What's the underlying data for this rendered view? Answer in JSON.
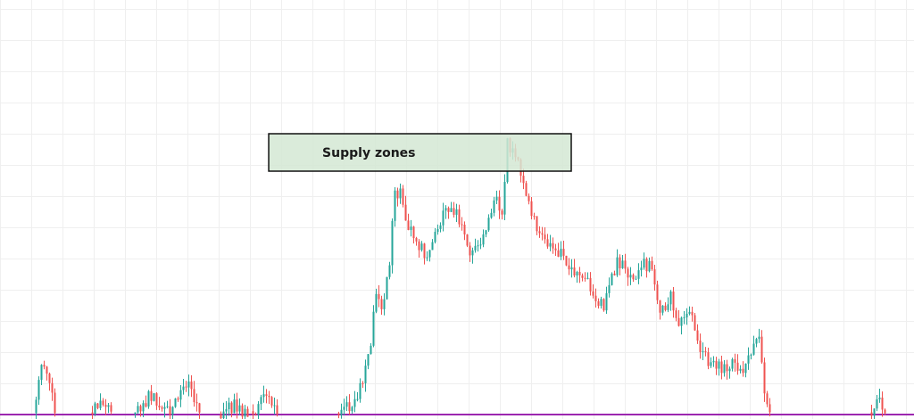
{
  "chart_data": {
    "type": "candlestick",
    "title": "",
    "xlabel": "",
    "ylabel": "",
    "grid": true,
    "colors": {
      "up": "#26a69a",
      "down": "#ef5350",
      "grid": "#efefef",
      "zone_fill": "#d4e8d4",
      "zone_border": "#111111",
      "baseline": "#9c27b0"
    },
    "ylim": [
      0,
      470
    ],
    "annotations": [
      {
        "type": "zone",
        "label": "Supply zones",
        "y_top": 320,
        "y_bottom": 278,
        "x_from": 0.294,
        "x_to": 0.625
      },
      {
        "type": "horizontal_line",
        "y": 5
      }
    ],
    "anchors": [
      [
        0,
        5
      ],
      [
        38,
        5
      ],
      [
        46,
        65
      ],
      [
        55,
        45
      ],
      [
        62,
        5
      ],
      [
        100,
        5
      ],
      [
        112,
        18
      ],
      [
        125,
        5
      ],
      [
        150,
        5
      ],
      [
        170,
        28
      ],
      [
        190,
        8
      ],
      [
        210,
        45
      ],
      [
        222,
        5
      ],
      [
        245,
        5
      ],
      [
        262,
        15
      ],
      [
        280,
        5
      ],
      [
        300,
        25
      ],
      [
        308,
        5
      ],
      [
        375,
        5
      ],
      [
        400,
        20
      ],
      [
        415,
        90
      ],
      [
        420,
        150
      ],
      [
        428,
        115
      ],
      [
        436,
        180
      ],
      [
        442,
        250
      ],
      [
        448,
        255
      ],
      [
        456,
        215
      ],
      [
        466,
        200
      ],
      [
        478,
        180
      ],
      [
        490,
        215
      ],
      [
        500,
        240
      ],
      [
        512,
        230
      ],
      [
        520,
        200
      ],
      [
        530,
        185
      ],
      [
        545,
        220
      ],
      [
        555,
        255
      ],
      [
        562,
        225
      ],
      [
        568,
        310
      ],
      [
        575,
        300
      ],
      [
        582,
        285
      ],
      [
        590,
        245
      ],
      [
        600,
        220
      ],
      [
        612,
        200
      ],
      [
        628,
        185
      ],
      [
        642,
        160
      ],
      [
        660,
        150
      ],
      [
        675,
        125
      ],
      [
        690,
        175
      ],
      [
        700,
        170
      ],
      [
        710,
        148
      ],
      [
        720,
        175
      ],
      [
        728,
        170
      ],
      [
        740,
        120
      ],
      [
        750,
        140
      ],
      [
        760,
        100
      ],
      [
        772,
        125
      ],
      [
        782,
        85
      ],
      [
        795,
        60
      ],
      [
        810,
        55
      ],
      [
        822,
        65
      ],
      [
        832,
        55
      ],
      [
        842,
        75
      ],
      [
        850,
        95
      ],
      [
        855,
        40
      ],
      [
        862,
        5
      ],
      [
        975,
        5
      ],
      [
        982,
        25
      ],
      [
        992,
        5
      ],
      [
        1024,
        5
      ]
    ]
  }
}
